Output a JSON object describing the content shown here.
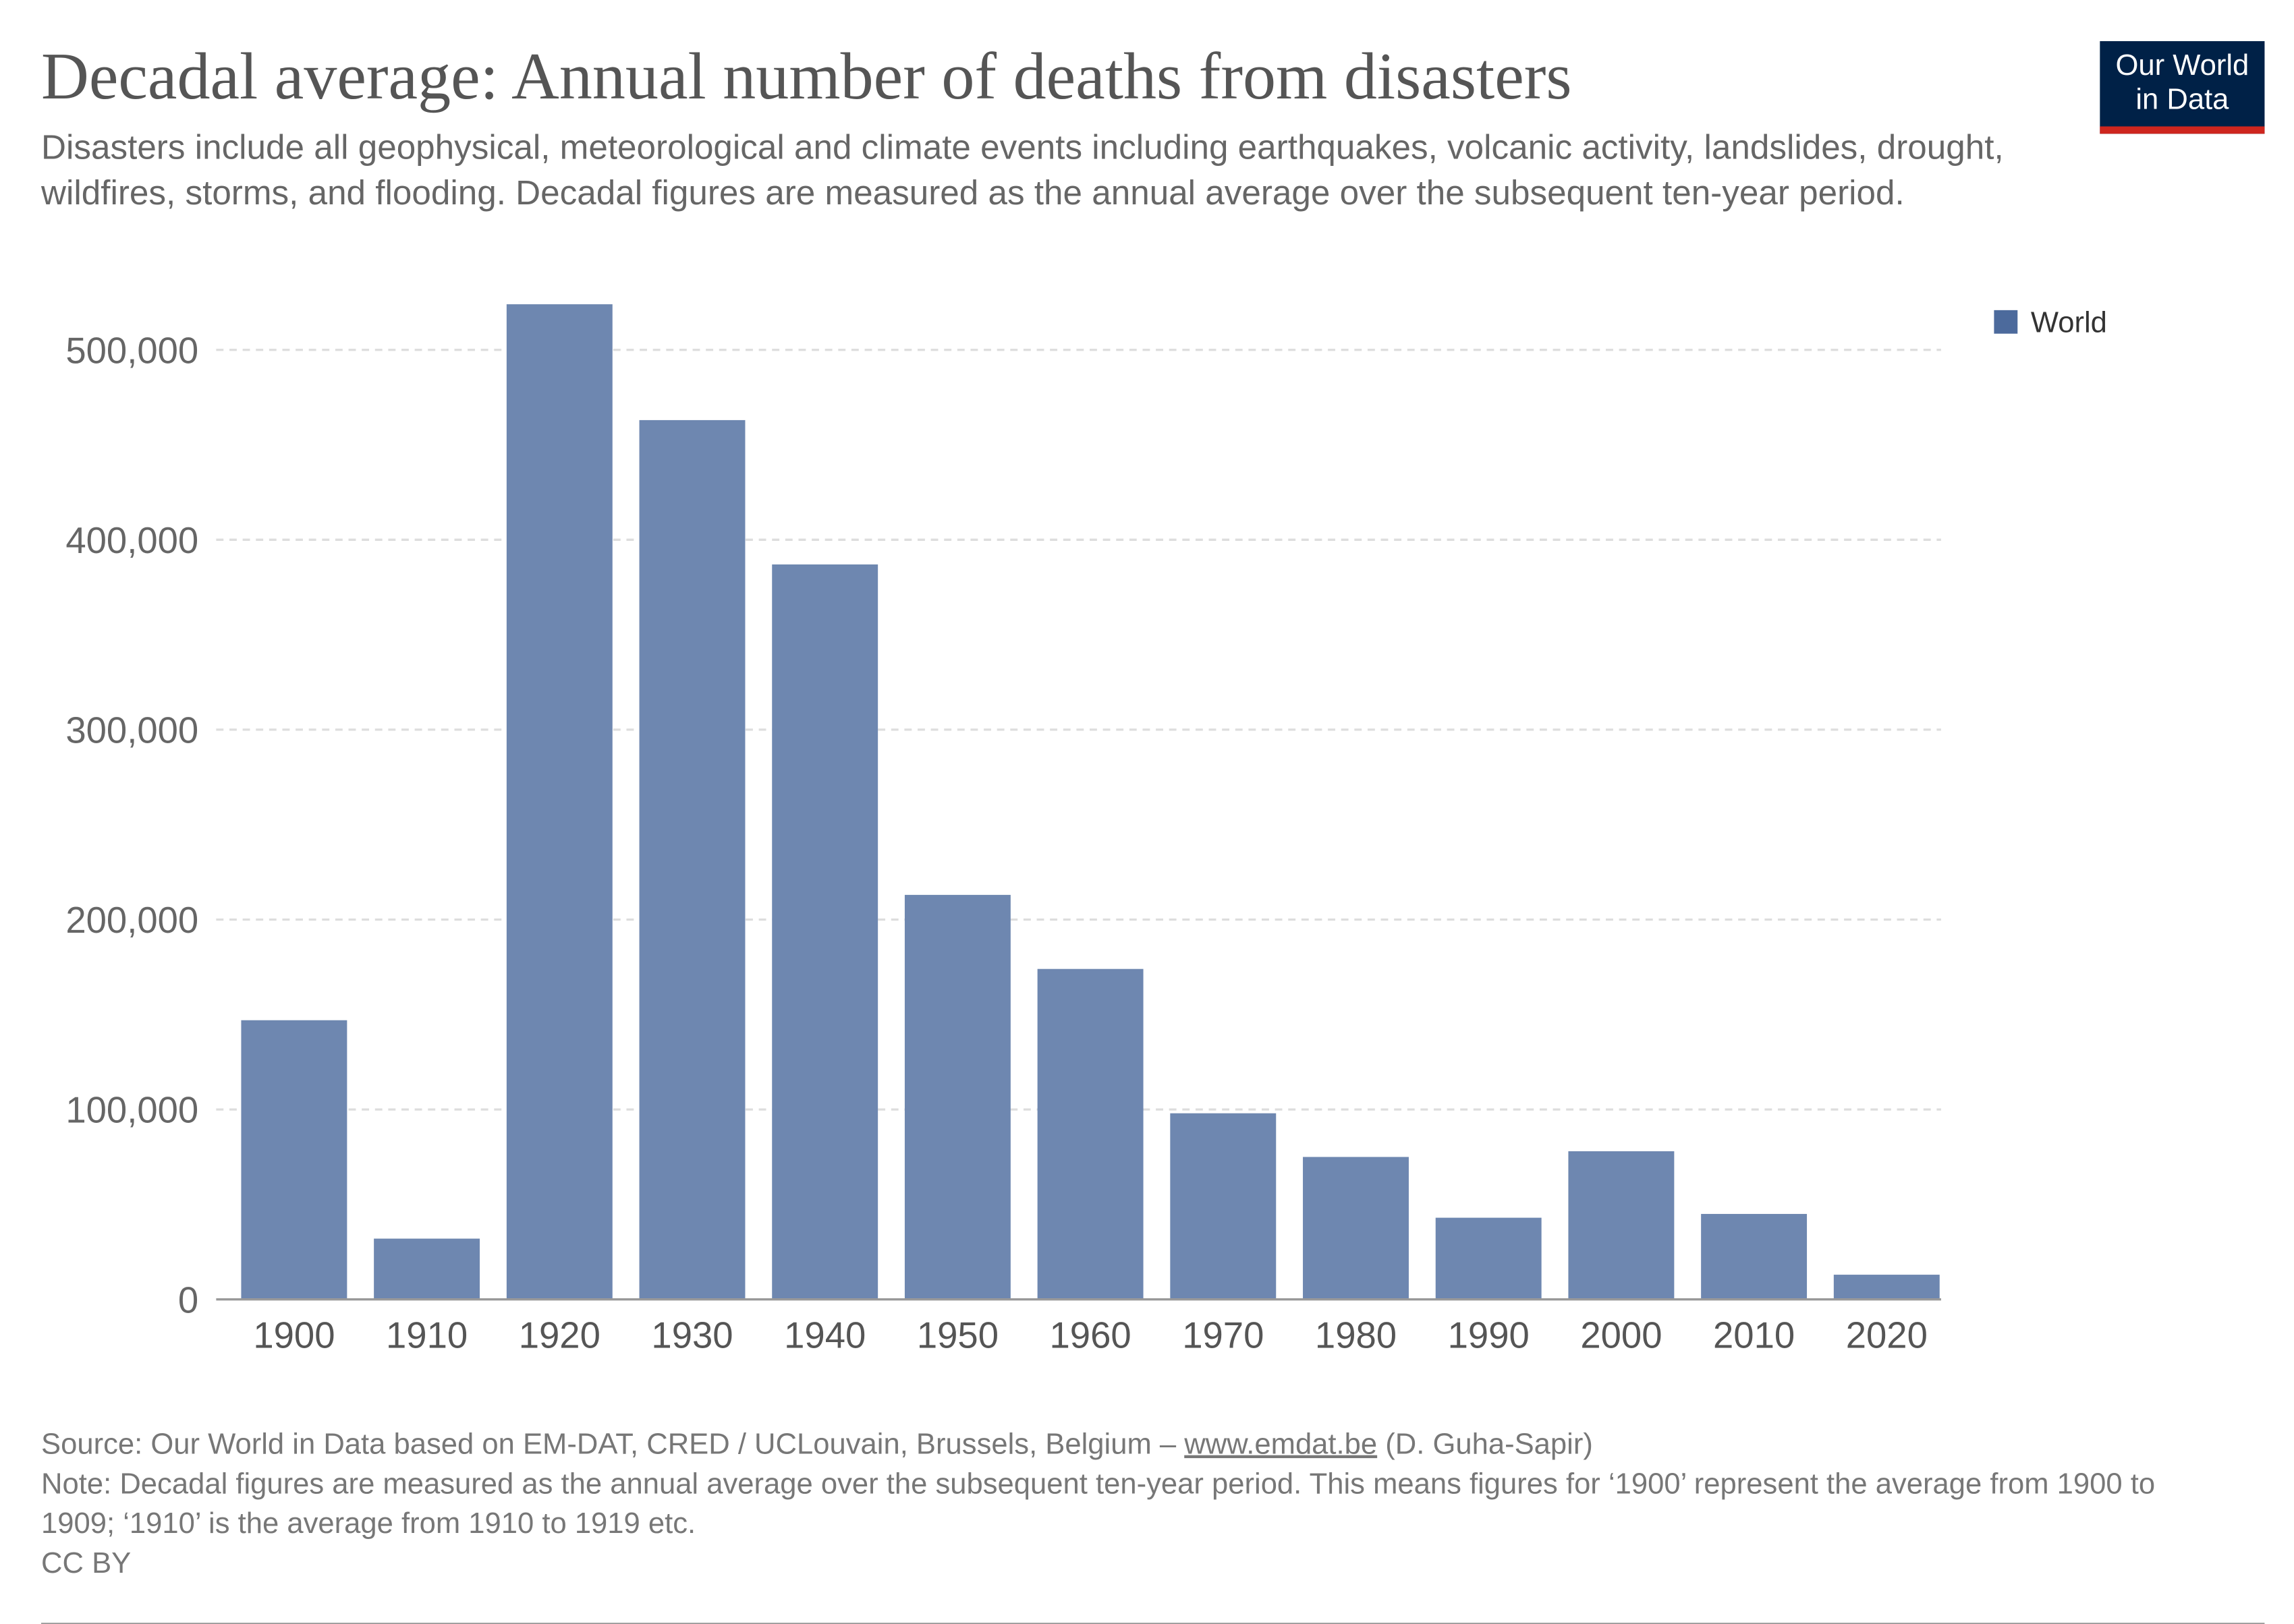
{
  "header": {
    "title": "Decadal average: Annual number of deaths from disasters",
    "subtitle": "Disasters include all geophysical, meteorological and climate events including earthquakes, volcanic activity, landslides, drought, wildfires, storms, and flooding. Decadal figures are measured as the annual average over the subsequent ten-year period.",
    "logo_line1": "Our World",
    "logo_line2": "in Data"
  },
  "chart_data": {
    "type": "bar",
    "title": "Decadal average: Annual number of deaths from disasters",
    "xlabel": "",
    "ylabel": "",
    "categories": [
      "1900",
      "1910",
      "1920",
      "1930",
      "1940",
      "1950",
      "1960",
      "1970",
      "1980",
      "1990",
      "2000",
      "2010",
      "2020"
    ],
    "series": [
      {
        "name": "World",
        "color": "#6e87b0",
        "values": [
          147000,
          32000,
          524000,
          463000,
          387000,
          213000,
          174000,
          98000,
          75000,
          43000,
          78000,
          45000,
          13000
        ]
      }
    ],
    "ylim": [
      0,
      524000
    ],
    "yticks": [
      0,
      100000,
      200000,
      300000,
      400000,
      500000
    ],
    "ytick_labels": [
      "0",
      "100,000",
      "200,000",
      "300,000",
      "400,000",
      "500,000"
    ],
    "grid": "horizontal dashed",
    "legend": "top-right",
    "legend_color": "#4c6a9c"
  },
  "footer": {
    "source_prefix": "Source: Our World in Data based on EM-DAT, CRED / UCLouvain, Brussels, Belgium – ",
    "source_link": "www.emdat.be",
    "source_suffix": " (D. Guha-Sapir)",
    "note": "Note: Decadal figures are measured as the annual average over the subsequent ten-year period. This means figures for ‘1900’ represent the average from 1900 to 1909; ‘1910’ is the average from 1910 to 1919 etc.",
    "license": "CC BY"
  }
}
